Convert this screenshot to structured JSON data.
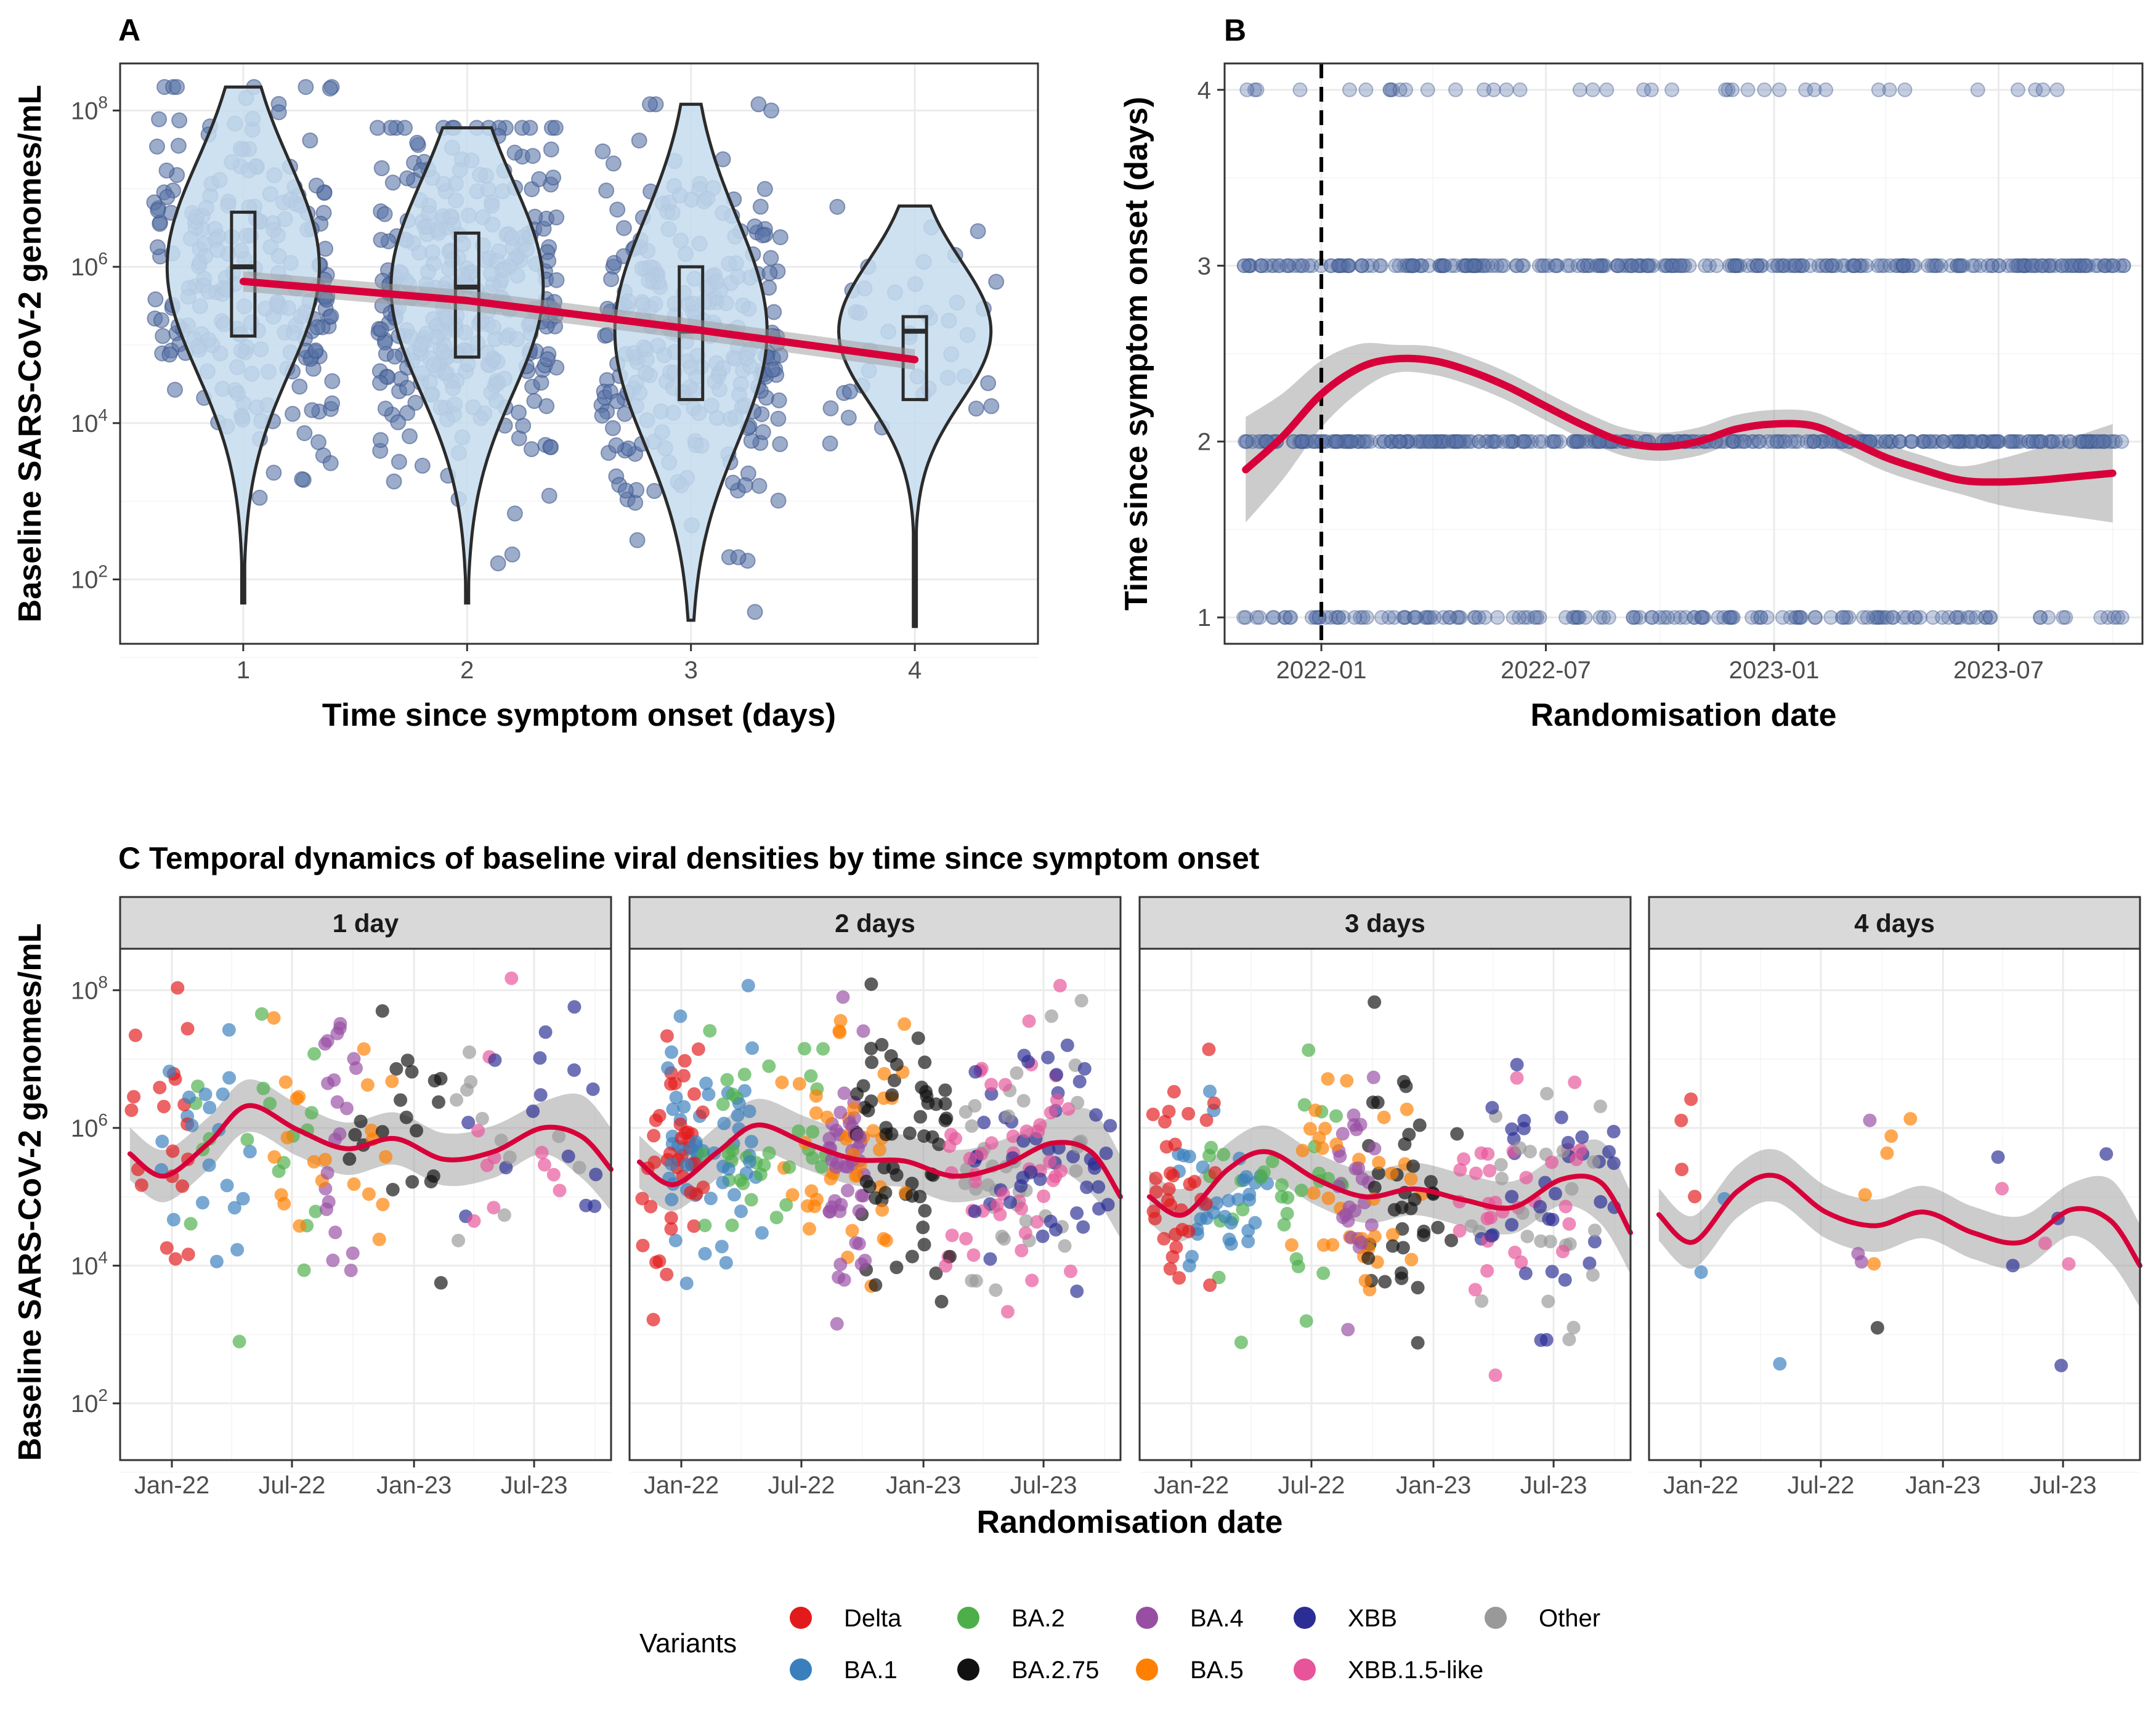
{
  "chart_data": [
    {
      "panel": "A",
      "type": "violin",
      "xlabel": "Time since symptom onset (days)",
      "ylabel": "Baseline SARS-CoV-2 genomes/mL",
      "y_scale": "log10",
      "ylim": [
        15,
        400000000
      ],
      "xlim": [
        0.45,
        4.55
      ],
      "categories": [
        "1",
        "2",
        "3",
        "4"
      ],
      "x_ticks": [
        "1",
        "2",
        "3",
        "4"
      ],
      "y_ticks": [
        {
          "value": 100,
          "label": "10",
          "exp": "2"
        },
        {
          "value": 10000,
          "label": "10",
          "exp": "4"
        },
        {
          "value": 1000000,
          "label": "10",
          "exp": "6"
        },
        {
          "value": 100000000,
          "label": "10",
          "exp": "8"
        }
      ],
      "point_color": "#5a74a8",
      "violin_fill": "#c6dcef",
      "summaries": [
        {
          "day": 1,
          "min": 50,
          "q1": 130000,
          "median": 1000000,
          "q3": 5000000,
          "max": 200000000
        },
        {
          "day": 2,
          "min": 50,
          "q1": 70000,
          "median": 550000,
          "q3": 2700000,
          "max": 60000000
        },
        {
          "day": 3,
          "min": 30,
          "q1": 20000,
          "median": 150000,
          "q3": 1000000,
          "max": 120000000
        },
        {
          "day": 4,
          "min": 25,
          "q1": 20000,
          "median": 150000,
          "q3": 230000,
          "max": 6000000
        }
      ],
      "trend": {
        "color": "#d7003a",
        "x": [
          1,
          2,
          3,
          4
        ],
        "y": [
          650000,
          370000,
          160000,
          65000
        ]
      }
    },
    {
      "panel": "B",
      "type": "scatter",
      "xlabel": "Randomisation date",
      "ylabel": "Time since symptom onset (days)",
      "x_range": [
        "2021-10-15",
        "2023-10-25"
      ],
      "ylim": [
        0.85,
        4.15
      ],
      "x_ticks": [
        {
          "date": "2022-01-01",
          "label": "2022-01"
        },
        {
          "date": "2022-07-01",
          "label": "2022-07"
        },
        {
          "date": "2023-01-01",
          "label": "2023-01"
        },
        {
          "date": "2023-07-01",
          "label": "2023-07"
        }
      ],
      "y_ticks": [
        "1",
        "2",
        "3",
        "4"
      ],
      "vline_date": "2022-01-01",
      "point_color": "#5a74a8",
      "trend": {
        "color": "#d7003a",
        "x": [
          "2021-11-01",
          "2021-12-01",
          "2022-01-01",
          "2022-02-01",
          "2022-03-01",
          "2022-04-01",
          "2022-05-01",
          "2022-06-01",
          "2022-07-01",
          "2022-08-01",
          "2022-09-01",
          "2022-10-01",
          "2022-11-01",
          "2022-12-01",
          "2023-01-01",
          "2023-02-01",
          "2023-03-01",
          "2023-04-01",
          "2023-05-01",
          "2023-06-01",
          "2023-07-01",
          "2023-08-01",
          "2023-09-01",
          "2023-10-01"
        ],
        "y": [
          1.84,
          2.03,
          2.27,
          2.42,
          2.47,
          2.46,
          2.4,
          2.31,
          2.2,
          2.09,
          2.0,
          1.97,
          2.0,
          2.07,
          2.1,
          2.09,
          2.01,
          1.91,
          1.84,
          1.78,
          1.77,
          1.78,
          1.8,
          1.82
        ]
      }
    },
    {
      "panel": "C",
      "type": "scatter",
      "title": "C Temporal dynamics of baseline viral densities by time since symptom onset",
      "xlabel": "Randomisation date",
      "ylabel": "Baseline SARS-CoV-2 genomes/mL",
      "y_scale": "log10",
      "ylim": [
        15,
        400000000
      ],
      "x_range": [
        "2021-10-15",
        "2023-10-25"
      ],
      "x_ticks": [
        {
          "date": "2022-01-01",
          "label": "Jan-22"
        },
        {
          "date": "2022-07-01",
          "label": "Jul-22"
        },
        {
          "date": "2023-01-01",
          "label": "Jan-23"
        },
        {
          "date": "2023-07-01",
          "label": "Jul-23"
        }
      ],
      "y_ticks": [
        {
          "value": 100,
          "label": "10",
          "exp": "2"
        },
        {
          "value": 10000,
          "label": "10",
          "exp": "4"
        },
        {
          "value": 1000000,
          "label": "10",
          "exp": "6"
        },
        {
          "value": 100000000,
          "label": "10",
          "exp": "8"
        }
      ],
      "facets": [
        {
          "label": "1 day",
          "trend": [
            [
              0.02,
              420000
            ],
            [
              0.09,
              200000
            ],
            [
              0.18,
              600000
            ],
            [
              0.26,
              2100000
            ],
            [
              0.36,
              950000
            ],
            [
              0.46,
              500000
            ],
            [
              0.56,
              700000
            ],
            [
              0.66,
              350000
            ],
            [
              0.76,
              450000
            ],
            [
              0.86,
              1000000
            ],
            [
              0.94,
              750000
            ],
            [
              1.0,
              250000
            ]
          ]
        },
        {
          "label": "2 days",
          "trend": [
            [
              0.02,
              320000
            ],
            [
              0.09,
              150000
            ],
            [
              0.18,
              450000
            ],
            [
              0.26,
              1100000
            ],
            [
              0.36,
              600000
            ],
            [
              0.46,
              350000
            ],
            [
              0.56,
              330000
            ],
            [
              0.66,
              200000
            ],
            [
              0.76,
              280000
            ],
            [
              0.86,
              600000
            ],
            [
              0.94,
              450000
            ],
            [
              1.0,
              100000
            ]
          ]
        },
        {
          "label": "3 days",
          "trend": [
            [
              0.02,
              100000
            ],
            [
              0.09,
              55000
            ],
            [
              0.18,
              250000
            ],
            [
              0.26,
              450000
            ],
            [
              0.36,
              180000
            ],
            [
              0.46,
              100000
            ],
            [
              0.56,
              130000
            ],
            [
              0.66,
              90000
            ],
            [
              0.76,
              70000
            ],
            [
              0.86,
              180000
            ],
            [
              0.94,
              160000
            ],
            [
              1.0,
              30000
            ]
          ]
        },
        {
          "label": "4 days",
          "trend": [
            [
              0.02,
              55000
            ],
            [
              0.09,
              22000
            ],
            [
              0.18,
              120000
            ],
            [
              0.26,
              200000
            ],
            [
              0.36,
              60000
            ],
            [
              0.46,
              38000
            ],
            [
              0.56,
              60000
            ],
            [
              0.66,
              30000
            ],
            [
              0.76,
              22000
            ],
            [
              0.86,
              65000
            ],
            [
              0.94,
              45000
            ],
            [
              1.0,
              10000
            ]
          ]
        }
      ],
      "trend_color": "#d7003a"
    }
  ],
  "legend": {
    "title": "Variants",
    "items": [
      {
        "label": "Delta",
        "color": "#e31a1c"
      },
      {
        "label": "BA.1",
        "color": "#3a7fbd"
      },
      {
        "label": "BA.2",
        "color": "#4daf4a"
      },
      {
        "label": "BA.2.75",
        "color": "#111111"
      },
      {
        "label": "BA.4",
        "color": "#984ea3"
      },
      {
        "label": "BA.5",
        "color": "#ff7f00"
      },
      {
        "label": "XBB",
        "color": "#2b2d94"
      },
      {
        "label": "XBB.1.5-like",
        "color": "#e7549a"
      },
      {
        "label": "Other",
        "color": "#999999"
      }
    ]
  },
  "panel_tags": {
    "a": "A",
    "b": "B"
  }
}
